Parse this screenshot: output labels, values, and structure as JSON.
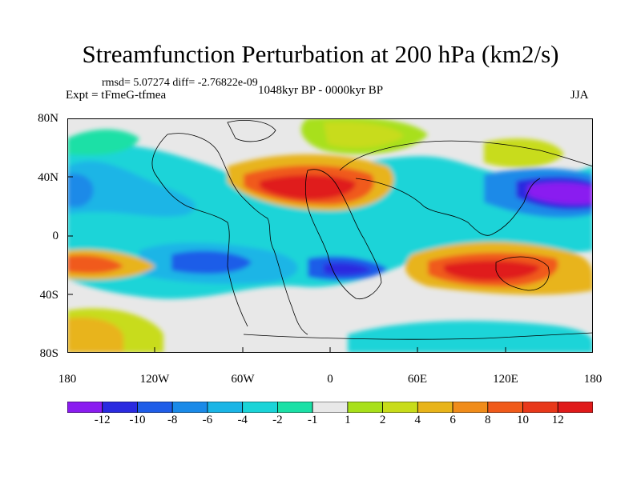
{
  "title": "Streamfunction Perturbation at 200 hPa (km2/s)",
  "stats": "rmsd= 5.07274 diff= -2.76822e-09",
  "experiment": "Expt = tFmeG-tfmea",
  "period": "1048kyr BP - 0000kyr BP",
  "season": "JJA",
  "lat_labels": [
    "80N",
    "40N",
    "0",
    "40S",
    "80S"
  ],
  "lon_labels": [
    "180",
    "120W",
    "60W",
    "0",
    "60E",
    "120E",
    "180"
  ],
  "colorbar": {
    "labels": [
      "-12",
      "-10",
      "-8",
      "-6",
      "-4",
      "-2",
      "-1",
      "1",
      "2",
      "4",
      "6",
      "8",
      "10",
      "12"
    ],
    "colors": [
      "#8a1cf0",
      "#2a2ae0",
      "#1f5de8",
      "#1a8ae8",
      "#1ab5e6",
      "#1ad4d8",
      "#1ae0a6",
      "#e8e8e8",
      "#a8e01a",
      "#c8dc1a",
      "#e8b41a",
      "#f08c1a",
      "#f05a1a",
      "#e8381a",
      "#e01a1a"
    ]
  }
}
